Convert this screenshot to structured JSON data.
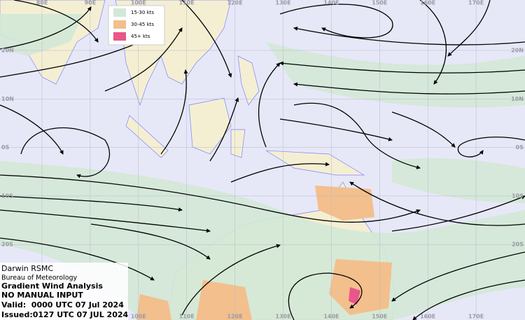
{
  "map": {
    "longitude_labels": [
      "80E",
      "90E",
      "100E",
      "110E",
      "120E",
      "130E",
      "140E",
      "150E",
      "160E",
      "170E"
    ],
    "latitude_labels": [
      "20N",
      "10N",
      "0S",
      "10S",
      "20S"
    ]
  },
  "legend": {
    "items": [
      {
        "label": "15-30 kts",
        "color": "#d3e8d6"
      },
      {
        "label": "30-45 kts",
        "color": "#f3bf8c"
      },
      {
        "label": "45+ kts",
        "color": "#e8578a"
      }
    ]
  },
  "info": {
    "office": "Darwin RSMC",
    "agency": "Bureau of Meteorology",
    "product": "Gradient Wind Analysis",
    "note": "NO MANUAL INPUT",
    "valid": "Valid:  0000 UTC 07 Jul 2024",
    "issued": "Issued:0127 UTC 07 JUL 2024"
  }
}
